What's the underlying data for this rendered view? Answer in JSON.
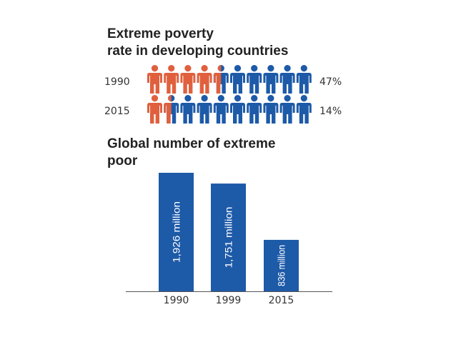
{
  "colors": {
    "poor": "#e0603e",
    "nonpoor": "#1d5aa8",
    "bar": "#1d5aa8",
    "axis": "#555555"
  },
  "icon": "person-icon",
  "chart_data": [
    {
      "type": "pictograph",
      "title": "Extreme poverty rate in developing countries",
      "icon_total": 10,
      "rows": [
        {
          "year": "1990",
          "percent_label": "47%",
          "value": 47,
          "filled_icons": 4.5
        },
        {
          "year": "2015",
          "percent_label": "14%",
          "value": 14,
          "filled_icons": 1.5
        }
      ]
    },
    {
      "type": "bar",
      "title": "Global number of extreme poor",
      "categories": [
        "1990",
        "1999",
        "2015"
      ],
      "values": [
        1926,
        1751,
        836
      ],
      "value_labels": [
        "1,926 million",
        "1,751 million",
        "836 million"
      ],
      "ylim": [
        0,
        1926
      ]
    }
  ]
}
